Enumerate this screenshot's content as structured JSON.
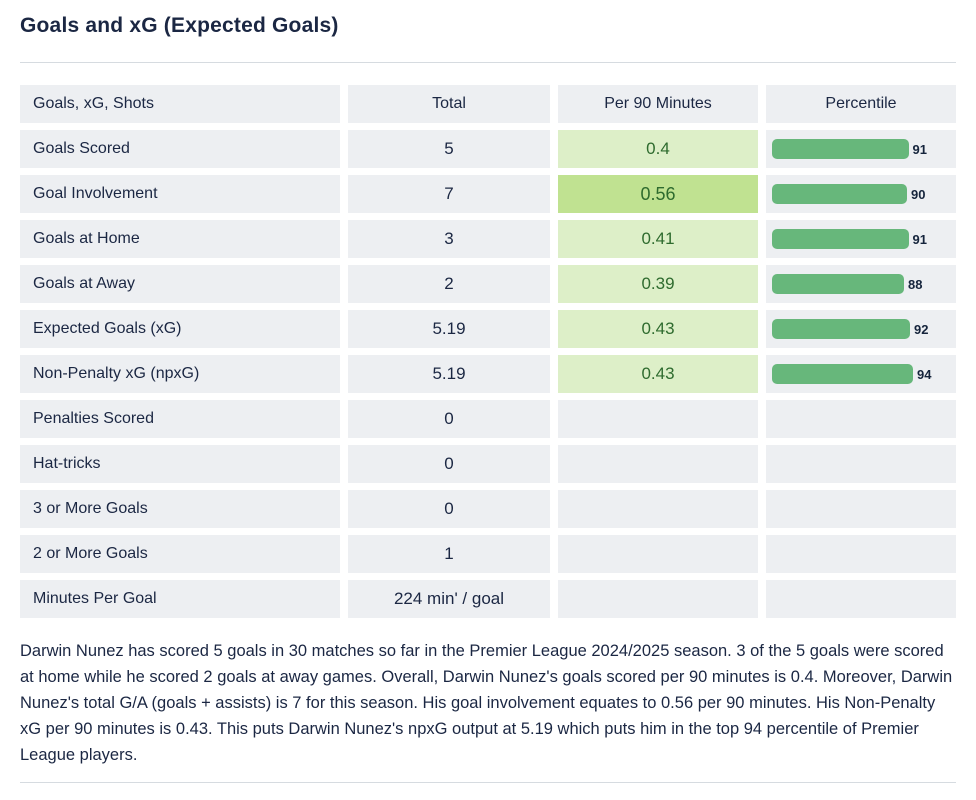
{
  "page": {
    "title": "Goals and xG (Expected Goals)"
  },
  "chart_data": {
    "type": "table",
    "title": "Goals and xG (Expected Goals)",
    "columns": [
      "Goals, xG, Shots",
      "Total",
      "Per 90 Minutes",
      "Percentile"
    ],
    "rows": [
      {
        "label": "Goals Scored",
        "total": "5",
        "per90": "0.4",
        "per90_highlight": "light",
        "percentile": 91
      },
      {
        "label": "Goal Involvement",
        "total": "7",
        "per90": "0.56",
        "per90_highlight": "medium",
        "percentile": 90
      },
      {
        "label": "Goals at Home",
        "total": "3",
        "per90": "0.41",
        "per90_highlight": "light",
        "percentile": 91
      },
      {
        "label": "Goals at Away",
        "total": "2",
        "per90": "0.39",
        "per90_highlight": "light",
        "percentile": 88
      },
      {
        "label": "Expected Goals (xG)",
        "total": "5.19",
        "per90": "0.43",
        "per90_highlight": "light",
        "percentile": 92
      },
      {
        "label": "Non-Penalty xG (npxG)",
        "total": "5.19",
        "per90": "0.43",
        "per90_highlight": "light",
        "percentile": 94
      },
      {
        "label": "Penalties Scored",
        "total": "0",
        "per90": null,
        "per90_highlight": null,
        "percentile": null
      },
      {
        "label": "Hat-tricks",
        "total": "0",
        "per90": null,
        "per90_highlight": null,
        "percentile": null
      },
      {
        "label": "3 or More Goals",
        "total": "0",
        "per90": null,
        "per90_highlight": null,
        "percentile": null
      },
      {
        "label": "2 or More Goals",
        "total": "1",
        "per90": null,
        "per90_highlight": null,
        "percentile": null
      },
      {
        "label": "Minutes Per Goal",
        "total": "224 min' / goal",
        "per90": null,
        "per90_highlight": null,
        "percentile": null
      }
    ]
  },
  "summary_text": "Darwin Nunez has scored 5 goals in 30 matches so far in the Premier League 2024/2025 season. 3 of the 5 goals were scored at home while he scored 2 goals at away games. Overall, Darwin Nunez's goals scored per 90 minutes is 0.4. Moreover, Darwin Nunez's total G/A (goals + assists) is 7 for this season. His goal involvement equates to 0.56 per 90 minutes. His Non-Penalty xG per 90 minutes is 0.43. This puts Darwin Nunez's npxG output at 5.19 which puts him in the top 94 percentile of Premier League players.",
  "colors": {
    "heading_text": "#1b2743",
    "row_bg": "#edeff2",
    "green_light": "#ddefc8",
    "green_medium": "#c0e291",
    "green_text": "#2e6b2e",
    "bar_green": "#67b77b",
    "divider": "#d6dbe0"
  }
}
